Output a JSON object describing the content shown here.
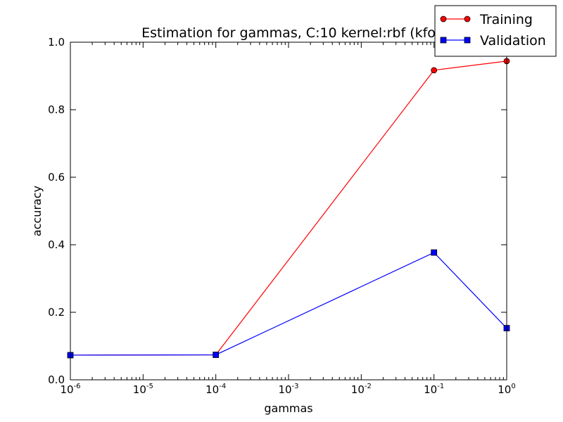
{
  "chart_data": {
    "type": "line",
    "title": "Estimation for gammas, C:10 kernel:rbf (kfo",
    "xlabel": "gammas",
    "ylabel": "accuracy",
    "x_scale": "log",
    "x_ticks": [
      {
        "base": "10",
        "exp": "-6"
      },
      {
        "base": "10",
        "exp": "-5"
      },
      {
        "base": "10",
        "exp": "-4"
      },
      {
        "base": "10",
        "exp": "-3"
      },
      {
        "base": "10",
        "exp": "-2"
      },
      {
        "base": "10",
        "exp": "-1"
      },
      {
        "base": "10",
        "exp": "0"
      }
    ],
    "y_ticks": [
      "0.0",
      "0.2",
      "0.4",
      "0.6",
      "0.8",
      "1.0"
    ],
    "xlim": [
      1e-06,
      1
    ],
    "ylim": [
      0,
      1
    ],
    "x": [
      1e-06,
      0.0001,
      0.1,
      1
    ],
    "series": [
      {
        "name": "Training",
        "color": "#ff0000",
        "marker": "circle",
        "values": [
          0.073,
          0.074,
          0.917,
          0.944
        ]
      },
      {
        "name": "Validation",
        "color": "#0000ff",
        "marker": "square",
        "values": [
          0.073,
          0.074,
          0.377,
          0.153
        ]
      }
    ],
    "legend_position": "top-right",
    "grid": false
  }
}
